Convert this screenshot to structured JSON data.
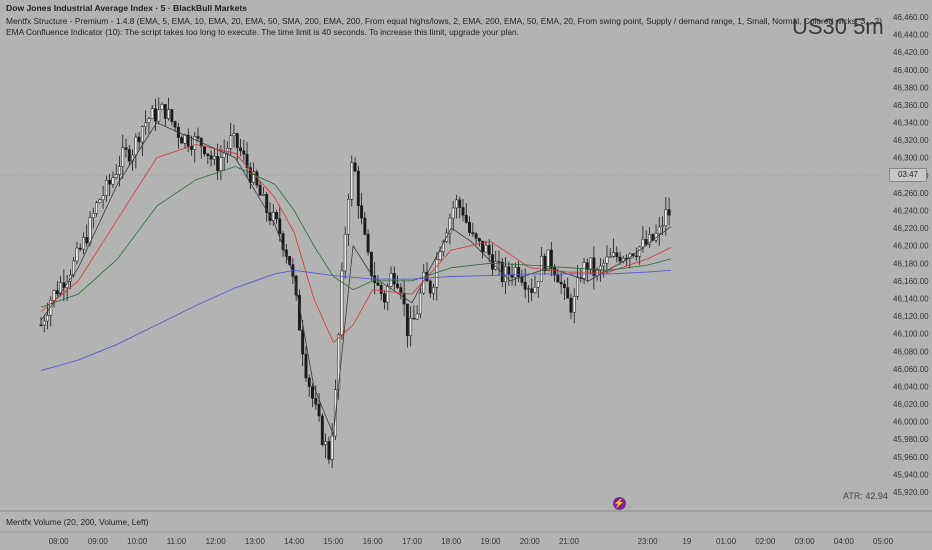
{
  "header": {
    "title": "Dow Jones Industrial Average Index · 5 · BlackBull Markets",
    "indicator1": "Mentfx Structure - Premium - 1.4.8 (EMA, 5, EMA, 10, EMA, 20, EMA, 50, SMA, 200, EMA, 200, From equal highs/lows, 2, EMA, 200, EMA, 50, EMA, 20, From swing point, Supply / demand range, 1, Small, Normal, Colored wicks, 3, , 2)",
    "indicator2": "EMA Confluence Indicator (10): The script takes too long to execute. The time limit is 40 seconds. To increase this limit, upgrade your plan."
  },
  "ticker_watermark": "US30 5m",
  "atr_label": "ATR: 42.94",
  "volume_pane_label": "Mentfx Volume (20, 200, Volume, Left)",
  "current_price_badge": "03:47",
  "icons": {
    "bolt": "lightning-bolt-icon"
  },
  "colors": {
    "background": "#b3b3b3",
    "candle": "#1a1a1a",
    "ema_fast": "#3a3a3a",
    "ema_mid": "#c93a3a",
    "ema_slow": "#2d6a3a",
    "sma_200": "#5a5ac8",
    "fast_light": "#7fb8c8"
  },
  "chart_data": {
    "type": "candlestick",
    "title": "Dow Jones Industrial Average Index · 5 · BlackBull Markets",
    "xlabel": "",
    "ylabel": "",
    "ylim": [
      45905,
      46470
    ],
    "y_ticks": [
      46460,
      46440,
      46420,
      46400,
      46380,
      46360,
      46340,
      46320,
      46300,
      46280,
      46260,
      46240,
      46220,
      46200,
      46180,
      46160,
      46140,
      46120,
      46100,
      46080,
      46060,
      46040,
      46020,
      46000,
      45980,
      45960,
      45940,
      45920
    ],
    "y_tick_labels": [
      "46,460.00",
      "46,440.00",
      "46,420.00",
      "46,400.00",
      "46,380.00",
      "46,360.00",
      "46,340.00",
      "46,320.00",
      "46,300.00",
      "46,280.00",
      "46,260.00",
      "46,240.00",
      "46,220.00",
      "46,200.00",
      "46,180.00",
      "46,160.00",
      "46,140.00",
      "46,120.00",
      "46,100.00",
      "46,080.00",
      "46,060.00",
      "46,040.00",
      "46,020.00",
      "46,000.00",
      "45,980.00",
      "45,960.00",
      "45,940.00",
      "45,920.00"
    ],
    "x_tick_labels": [
      "08:00",
      "09:00",
      "10:00",
      "11:00",
      "12:00",
      "13:00",
      "14:00",
      "15:00",
      "16:00",
      "17:00",
      "18:00",
      "19:00",
      "20:00",
      "21:00",
      "23:00",
      "19",
      "01:00",
      "02:00",
      "03:00",
      "04:00",
      "05:00"
    ],
    "x_tick_hours": [
      8,
      9,
      10,
      11,
      12,
      13,
      14,
      15,
      16,
      17,
      18,
      19,
      20,
      21,
      23,
      24,
      25,
      26,
      27,
      28,
      29
    ],
    "price_path": {
      "start_hour": 7.55,
      "end_hour": 23.6,
      "close_points": [
        [
          7.55,
          46110
        ],
        [
          7.8,
          46140
        ],
        [
          8.1,
          46160
        ],
        [
          8.4,
          46180
        ],
        [
          8.7,
          46210
        ],
        [
          9.0,
          46250
        ],
        [
          9.3,
          46270
        ],
        [
          9.6,
          46300
        ],
        [
          9.9,
          46310
        ],
        [
          10.1,
          46335
        ],
        [
          10.3,
          46345
        ],
        [
          10.5,
          46350
        ],
        [
          10.7,
          46355
        ],
        [
          10.9,
          46340
        ],
        [
          11.1,
          46325
        ],
        [
          11.4,
          46320
        ],
        [
          11.7,
          46315
        ],
        [
          12.0,
          46290
        ],
        [
          12.2,
          46305
        ],
        [
          12.4,
          46320
        ],
        [
          12.6,
          46310
        ],
        [
          12.8,
          46290
        ],
        [
          13.0,
          46270
        ],
        [
          13.3,
          46240
        ],
        [
          13.6,
          46220
        ],
        [
          13.9,
          46180
        ],
        [
          14.1,
          46120
        ],
        [
          14.3,
          46060
        ],
        [
          14.5,
          46020
        ],
        [
          14.7,
          45985
        ],
        [
          14.9,
          45960
        ],
        [
          15.05,
          46030
        ],
        [
          15.2,
          46150
        ],
        [
          15.35,
          46250
        ],
        [
          15.5,
          46300
        ],
        [
          15.7,
          46230
        ],
        [
          15.9,
          46180
        ],
        [
          16.1,
          46155
        ],
        [
          16.3,
          46140
        ],
        [
          16.5,
          46170
        ],
        [
          16.7,
          46160
        ],
        [
          16.9,
          46100
        ],
        [
          17.1,
          46120
        ],
        [
          17.3,
          46160
        ],
        [
          17.5,
          46150
        ],
        [
          17.7,
          46200
        ],
        [
          17.9,
          46225
        ],
        [
          18.1,
          46250
        ],
        [
          18.3,
          46240
        ],
        [
          18.5,
          46210
        ],
        [
          18.7,
          46200
        ],
        [
          18.9,
          46195
        ],
        [
          19.1,
          46180
        ],
        [
          19.3,
          46165
        ],
        [
          19.5,
          46170
        ],
        [
          19.7,
          46175
        ],
        [
          19.9,
          46160
        ],
        [
          20.1,
          46150
        ],
        [
          20.3,
          46180
        ],
        [
          20.5,
          46185
        ],
        [
          20.7,
          46170
        ],
        [
          20.9,
          46140
        ],
        [
          21.1,
          46130
        ],
        [
          21.3,
          46170
        ],
        [
          21.5,
          46180
        ],
        [
          21.7,
          46165
        ],
        [
          21.9,
          46180
        ],
        [
          22.1,
          46185
        ],
        [
          22.3,
          46190
        ],
        [
          22.6,
          46195
        ],
        [
          22.9,
          46200
        ],
        [
          23.1,
          46205
        ],
        [
          23.3,
          46215
        ],
        [
          23.45,
          46235
        ],
        [
          23.6,
          46238
        ]
      ]
    },
    "series": [
      {
        "name": "EMA fast",
        "x": [
          7.55,
          8.5,
          9.5,
          10.5,
          11.5,
          12.5,
          13.5,
          14.0,
          14.5,
          15.0,
          15.5,
          16.0,
          17.0,
          18.0,
          18.5,
          19.5,
          20.5,
          21.5,
          22.5,
          23.6
        ],
        "values": [
          46115,
          46175,
          46270,
          46340,
          46320,
          46300,
          46225,
          46165,
          46040,
          45985,
          46200,
          46165,
          46135,
          46220,
          46205,
          46160,
          46175,
          46160,
          46185,
          46222
        ]
      },
      {
        "name": "EMA mid",
        "x": [
          7.55,
          8.5,
          9.5,
          10.5,
          11.5,
          12.5,
          13.5,
          14.0,
          14.5,
          15.0,
          15.5,
          16.0,
          17.0,
          18.0,
          19.0,
          20.0,
          21.0,
          22.0,
          23.0,
          23.6
        ],
        "values": [
          46125,
          46160,
          46230,
          46300,
          46315,
          46305,
          46255,
          46215,
          46140,
          46090,
          46110,
          46150,
          46145,
          46195,
          46205,
          46175,
          46170,
          46170,
          46185,
          46198
        ]
      },
      {
        "name": "EMA slow",
        "x": [
          7.55,
          8.5,
          9.5,
          10.5,
          11.5,
          12.5,
          13.5,
          14.0,
          14.5,
          15.0,
          15.5,
          16.0,
          17.0,
          18.0,
          19.0,
          20.0,
          21.0,
          22.0,
          23.0,
          23.6
        ],
        "values": [
          46130,
          46145,
          46185,
          46245,
          46275,
          46290,
          46270,
          46240,
          46200,
          46165,
          46150,
          46160,
          46160,
          46175,
          46180,
          46178,
          46175,
          46172,
          46178,
          46185
        ]
      },
      {
        "name": "SMA 200",
        "x": [
          7.55,
          8.5,
          9.5,
          10.5,
          11.5,
          12.5,
          13.5,
          14.0,
          15.0,
          16.0,
          17.0,
          18.0,
          19.0,
          20.0,
          21.0,
          22.0,
          23.0,
          23.6
        ],
        "values": [
          46058,
          46070,
          46088,
          46110,
          46132,
          46152,
          46168,
          46172,
          46166,
          46162,
          46162,
          46165,
          46166,
          46168,
          46168,
          46168,
          46170,
          46172
        ]
      }
    ]
  }
}
